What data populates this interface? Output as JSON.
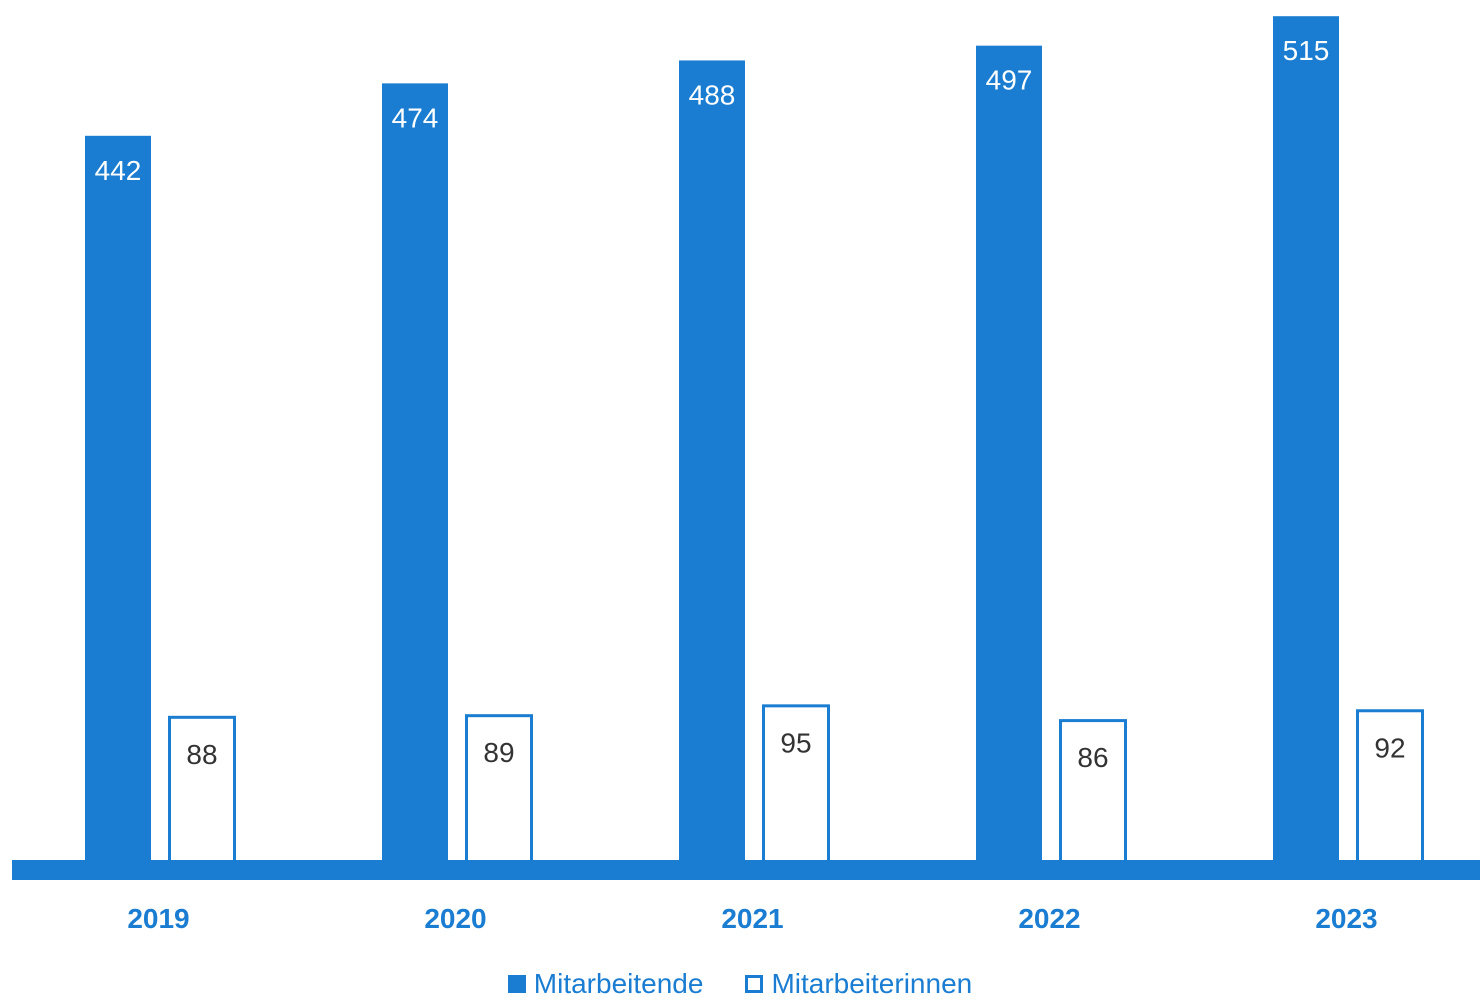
{
  "colors": {
    "primary": "#1a7dd2",
    "label_dark": "#333333",
    "background": "#ffffff"
  },
  "chart_data": {
    "type": "bar",
    "title": "",
    "xlabel": "",
    "ylabel": "",
    "categories": [
      "2019",
      "2020",
      "2021",
      "2022",
      "2023"
    ],
    "series": [
      {
        "name": "Mitarbeitende",
        "style": "filled",
        "values": [
          442,
          474,
          488,
          497,
          515
        ]
      },
      {
        "name": "Mitarbeiterinnen",
        "style": "outline",
        "values": [
          88,
          89,
          95,
          86,
          92
        ]
      }
    ],
    "ylim": [
      0,
      520
    ],
    "grid": false,
    "legend_position": "bottom"
  }
}
